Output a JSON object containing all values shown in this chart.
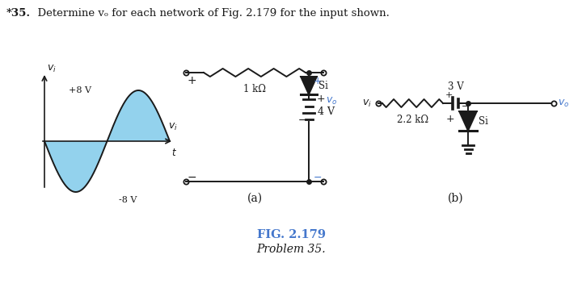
{
  "title_bold": "*35.",
  "title_rest": "  Determine vₒ for each network of Fig. 2.179 for the input shown.",
  "fig_label": "FIG. 2.179",
  "fig_sublabel": "Problem 35.",
  "label_a": "(a)",
  "label_b": "(b)",
  "bg_color": "#ffffff",
  "text_color": "#1a1a1a",
  "blue_fill": "#87CEEB",
  "blue_text": "#4477cc",
  "circuit_color": "#1a1a1a",
  "resistor_a_label": "1 kΩ",
  "resistor_b_label": "2.2 kΩ",
  "diode_label_a": "Si",
  "diode_label_b": "Si",
  "battery_label": "4 V",
  "voltage_3v": "3 V",
  "vi_plus": "+8 V",
  "vi_minus": "-8 V"
}
